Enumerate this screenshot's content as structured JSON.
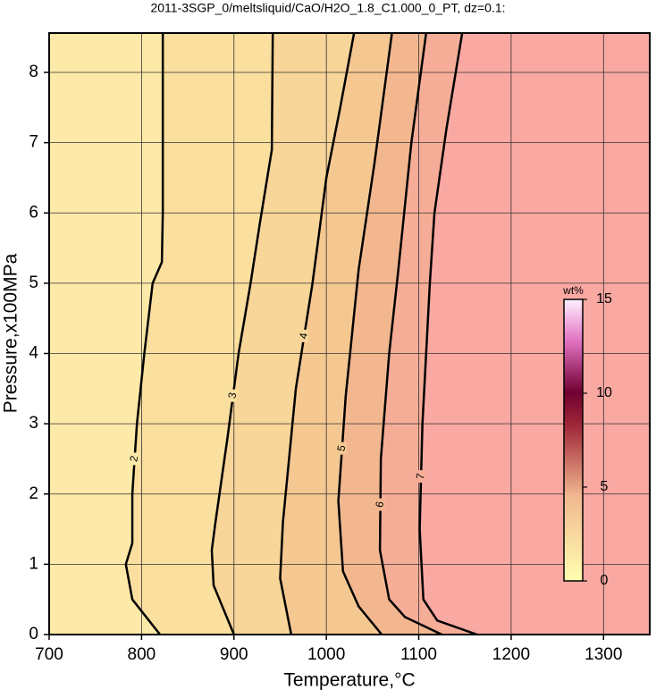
{
  "chart_data": {
    "type": "contour",
    "title": "2011-3SGP_0/meltsliquid/CaO/H2O_1.8_C1.000_0_PT, dz=0.1:",
    "xlabel": "Temperature,°C",
    "ylabel": "Pressure,x100MPa",
    "xlim": [
      700,
      1350
    ],
    "ylim": [
      0,
      8.56
    ],
    "xticks": [
      700,
      800,
      900,
      1000,
      1100,
      1200,
      1300
    ],
    "yticks": [
      0,
      1,
      2,
      3,
      4,
      5,
      6,
      7,
      8
    ],
    "grid": true,
    "background_color": "#f9a8a2",
    "contours": [
      {
        "label": 7,
        "color": "#f6ad98",
        "x": [
          1163,
          1120,
          1105,
          1101,
          1104,
          1112,
          1117,
          1130,
          1147
        ],
        "y": [
          0,
          0.2,
          0.5,
          1.5,
          3,
          5,
          6,
          7.2,
          8.56
        ]
      },
      {
        "label": 6,
        "color": "#f3b790",
        "x": [
          1125,
          1085,
          1068,
          1058,
          1059,
          1068,
          1078,
          1092,
          1108
        ],
        "y": [
          0,
          0.25,
          0.5,
          1.2,
          2.5,
          4,
          5.2,
          7,
          8.56
        ]
      },
      {
        "label": 5,
        "color": "#f5c892",
        "x": [
          1060,
          1035,
          1018,
          1013,
          1021,
          1035,
          1052,
          1071
        ],
        "y": [
          0,
          0.4,
          0.9,
          1.9,
          3.4,
          5.2,
          6.7,
          8.56
        ]
      },
      {
        "label": 4,
        "color": "#f8d598",
        "x": [
          962,
          950,
          953,
          967,
          985,
          1000,
          1015,
          1030
        ],
        "y": [
          0,
          0.8,
          1.6,
          3.5,
          5,
          6.5,
          7.5,
          8.56
        ]
      },
      {
        "label": 3,
        "color": "#fbdf9f",
        "x": [
          900,
          878,
          876,
          880,
          893,
          905,
          918,
          928,
          941,
          942
        ],
        "y": [
          0,
          0.7,
          1.2,
          1.6,
          2.8,
          4,
          5,
          5.85,
          6.9,
          8.56
        ]
      },
      {
        "label": 2,
        "color": "#fde9a8",
        "x": [
          820,
          790,
          783,
          790,
          790,
          795,
          803,
          812,
          822,
          823,
          823
        ],
        "y": [
          0,
          0.5,
          1,
          1.3,
          2,
          3,
          4,
          5,
          5.3,
          6,
          8.56
        ]
      }
    ],
    "colorbar": {
      "label": "wt%",
      "lim": [
        0,
        15
      ],
      "ticks": [
        0,
        5,
        10,
        15
      ]
    }
  }
}
